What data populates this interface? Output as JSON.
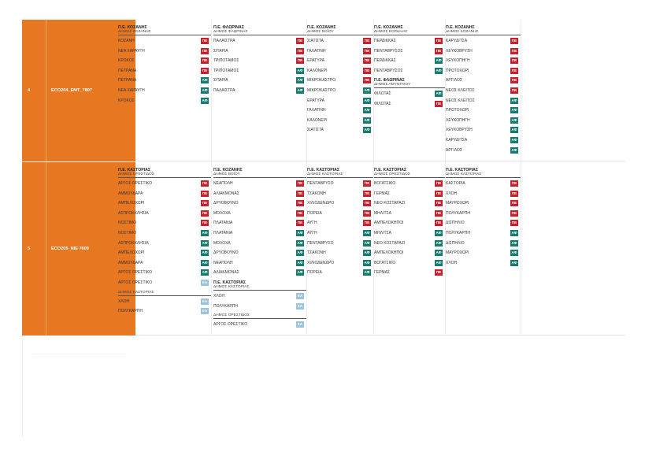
{
  "badge_colors": {
    "ΠΕ": "#c8202a",
    "ΑΦ": "#167a70",
    "ΕΑ": "#9cc3de"
  },
  "blocks": [
    {
      "number": "4",
      "code": "ECO204_EMT_7807",
      "columns": [
        {
          "groups": [
            {
              "title": "Π.Ε. ΚΟΖΑΝΗΣ",
              "subtitle": "ΔΗΜΟΣ ΚΟΖΑΝΗΣ",
              "rows": [
                {
                  "name": "ΚΟΖΑΝΗ",
                  "badge": "ΠΕ"
                },
                {
                  "name": "ΝΕΑ ΧΑΡΑΥΓΗ",
                  "badge": "ΠΕ"
                },
                {
                  "name": "ΚΡΟΚΟΣ",
                  "badge": "ΠΕ"
                },
                {
                  "name": "ΠΕΤΡΑΝΑ",
                  "badge": "ΠΕ"
                },
                {
                  "name": "ΠΕΤΡΑΝΑ",
                  "badge": "ΑΦ"
                },
                {
                  "name": "ΝΕΑ ΧΑΡΑΥΓΗ",
                  "badge": "ΑΦ"
                },
                {
                  "name": "ΚΡΟΚΟΣ",
                  "badge": "ΑΦ"
                }
              ]
            }
          ]
        },
        {
          "groups": [
            {
              "title": "Π.Ε. ΦΛΩΡΙΝΑΣ",
              "subtitle": "ΔΗΜΟΣ ΦΛΩΡΙΝΑΣ",
              "rows": [
                {
                  "name": "ΠΑΛΑΙΣΤΡΑ",
                  "badge": "ΠΕ"
                },
                {
                  "name": "ΣΙΤΑΡΙΑ",
                  "badge": "ΠΕ"
                },
                {
                  "name": "ΤΡΙΠΟΤΑΜΟΣ",
                  "badge": "ΠΕ"
                },
                {
                  "name": "ΤΡΙΠΟΤΑΜΟΣ",
                  "badge": "ΑΦ"
                },
                {
                  "name": "ΣΙΤΑΡΙΑ",
                  "badge": "ΑΦ"
                },
                {
                  "name": "ΠΑΛΑΙΣΤΡΑ",
                  "badge": "ΑΦ"
                }
              ]
            }
          ]
        },
        {
          "groups": [
            {
              "title": "Π.Ε. ΚΟΖΑΝΗΣ",
              "subtitle": "ΔΗΜΟΣ ΒΟΪΟΥ",
              "rows": [
                {
                  "name": "ΣΙΑΤΙΣΤΑ",
                  "badge": "ΠΕ"
                },
                {
                  "name": "ΓΑΛΑΤΙΝΗ",
                  "badge": "ΠΕ"
                },
                {
                  "name": "ΕΡΑΤΥΡΑ",
                  "badge": "ΠΕ"
                },
                {
                  "name": "ΚΑΛΟΝΕΡΙ",
                  "badge": "ΠΕ"
                },
                {
                  "name": "ΜΙΚΡΟΚΑΣΤΡΟ",
                  "badge": "ΠΕ"
                },
                {
                  "name": "ΜΙΚΡΟΚΑΣΤΡΟ",
                  "badge": "ΑΦ"
                },
                {
                  "name": "ΕΡΑΤΥΡΑ",
                  "badge": "ΑΦ"
                },
                {
                  "name": "ΓΑΛΑΤΙΝΗ",
                  "badge": "ΑΦ"
                },
                {
                  "name": "ΚΑΛΟΝΕΡΙ",
                  "badge": "ΑΦ"
                },
                {
                  "name": "ΣΙΑΤΙΣΤΑ",
                  "badge": "ΑΦ"
                }
              ]
            }
          ]
        },
        {
          "groups": [
            {
              "title": "Π.Ε. ΚΟΖΑΝΗΣ",
              "subtitle": "ΔΗΜΟΣ ΕΟΡΔΑΙΑΣ",
              "rows": [
                {
                  "name": "ΠΕΡΔΙΚΚΑΣ",
                  "badge": "ΠΕ"
                },
                {
                  "name": "ΠΕΝΤΑΒΡΥΣΟΣ",
                  "badge": "ΠΕ"
                },
                {
                  "name": "ΠΕΡΔΙΚΚΑΣ",
                  "badge": "ΑΦ"
                },
                {
                  "name": "ΠΕΝΤΑΒΡΥΣΟΣ",
                  "badge": "ΑΦ"
                }
              ]
            },
            {
              "title": "Π.Ε. ΦΛΩΡΙΝΑΣ",
              "subtitle": "ΔΗΜΟΣ ΑΜΥΝΤΑΙΟΥ",
              "rows": [
                {
                  "name": "ΦΙΛΩΤΑΣ",
                  "badge": "ΑΦ"
                },
                {
                  "name": "ΦΙΛΩΤΑΣ",
                  "badge": "ΠΕ"
                }
              ]
            }
          ]
        },
        {
          "groups": [
            {
              "title": "Π.Ε. ΚΟΖΑΝΗΣ",
              "subtitle": "ΔΗΜΟΣ ΚΟΖΑΝΗΣ",
              "rows": [
                {
                  "name": "ΚΑΡΥΔΙΤΣΑ",
                  "badge": "ΠΕ"
                },
                {
                  "name": "ΛΕΥΚΟΒΡΥΣΗ",
                  "badge": "ΠΕ"
                },
                {
                  "name": "ΛΕΥΚΟΠΗΓΗ",
                  "badge": "ΠΕ"
                },
                {
                  "name": "ΠΡΩΤΟΧΩΡΙ",
                  "badge": "ΠΕ"
                },
                {
                  "name": "ΑΡΓΙΛΟΣ",
                  "badge": "ΠΕ"
                },
                {
                  "name": "ΝΕΟΣ ΚΛΕΙΤΟΣ",
                  "badge": "ΠΕ"
                },
                {
                  "name": "ΝΕΟΣ ΚΛΕΙΤΟΣ",
                  "badge": "ΑΦ"
                },
                {
                  "name": "ΠΡΩΤΟΧΩΡΙ",
                  "badge": "ΑΦ"
                },
                {
                  "name": "ΛΕΥΚΟΠΗΓΗ",
                  "badge": "ΑΦ"
                },
                {
                  "name": "ΛΕΥΚΟΒΡΥΣΗ",
                  "badge": "ΑΦ"
                },
                {
                  "name": "ΚΑΡΥΔΙΤΣΑ",
                  "badge": "ΑΦ"
                },
                {
                  "name": "ΑΡΓΙΛΟΣ",
                  "badge": "ΑΦ"
                }
              ]
            }
          ]
        }
      ]
    },
    {
      "number": "5",
      "code": "ECO205_NIE 7609",
      "columns": [
        {
          "groups": [
            {
              "title": "Π.Ε. ΚΑΣΤΟΡΙΑΣ",
              "subtitle": "ΔΗΜΟΣ ΟΡΕΣΤΙΔΟΣ",
              "rows": [
                {
                  "name": "ΑΡΓΟΣ ΟΡΕΣΤΙΚΟ",
                  "badge": "ΠΕ"
                },
                {
                  "name": "ΑΜΜΟΥΔΑΡΑ",
                  "badge": "ΠΕ"
                },
                {
                  "name": "ΑΜΠΕΛΟΧΩΡΙ",
                  "badge": "ΠΕ"
                },
                {
                  "name": "ΑΣΠΡΟΚΚΛΗΣΙΑ",
                  "badge": "ΠΕ"
                },
                {
                  "name": "ΝΟΣΤΙΜΟ",
                  "badge": "ΠΕ"
                },
                {
                  "name": "ΝΟΣΤΙΜΟ",
                  "badge": "ΑΦ"
                },
                {
                  "name": "ΑΣΠΡΟΚΚΛΗΣΙΑ",
                  "badge": "ΑΦ"
                },
                {
                  "name": "ΑΜΠΕΛΟΧΩΡΙ",
                  "badge": "ΑΦ"
                },
                {
                  "name": "ΑΜΜΟΥΔΑΡΑ",
                  "badge": "ΑΦ"
                },
                {
                  "name": "ΑΡΓΟΣ ΟΡΕΣΤΙΚΟ",
                  "badge": "ΑΦ"
                },
                {
                  "name": "ΑΡΓΟΣ ΟΡΕΣΤΙΚΟ",
                  "badge": "ΕΑ"
                }
              ]
            },
            {
              "title": "",
              "subtitle": "ΔΗΜΟΣ ΚΑΣΤΟΡΙΑΣ",
              "rows": [
                {
                  "name": "ΧΛΟΗ",
                  "badge": "ΕΑ"
                },
                {
                  "name": "ΠΟΛΥΚΑΡΠΗ",
                  "badge": "ΕΑ"
                }
              ]
            }
          ]
        },
        {
          "groups": [
            {
              "title": "Π.Ε. ΚΟΖΑΝΗΣ",
              "subtitle": "ΔΗΜΟΣ ΒΟΪΟΥ",
              "rows": [
                {
                  "name": "ΝΕΑΠΟΛΗ",
                  "badge": "ΠΕ"
                },
                {
                  "name": "ΑΛΙΑΚΜΟΝΑΣ",
                  "badge": "ΠΕ"
                },
                {
                  "name": "ΔΡΥΟΒΟΥΝΟ",
                  "badge": "ΠΕ"
                },
                {
                  "name": "ΜΟΛΟΧΑ",
                  "badge": "ΠΕ"
                },
                {
                  "name": "ΠΛΑΤΑΝΙΑ",
                  "badge": "ΠΕ"
                },
                {
                  "name": "ΠΛΑΤΑΝΙΑ",
                  "badge": "ΑΦ"
                },
                {
                  "name": "ΜΟΛΟΧΑ",
                  "badge": "ΑΦ"
                },
                {
                  "name": "ΔΡΥΟΒΟΥΝΟ",
                  "badge": "ΑΦ"
                },
                {
                  "name": "ΝΕΑΠΟΛΗ",
                  "badge": "ΑΦ"
                },
                {
                  "name": "ΑΛΙΑΚΜΟΝΑΣ",
                  "badge": "ΑΦ"
                }
              ]
            },
            {
              "title": "Π.Ε. ΚΑΣΤΟΡΙΑΣ",
              "subtitle": "ΔΗΜΟΣ ΚΑΣΤΟΡΙΑΣ",
              "rows": [
                {
                  "name": "ΧΛΟΗ",
                  "badge": "ΕΑ"
                },
                {
                  "name": "ΠΟΛΥΚΑΡΠΗ",
                  "badge": "ΕΑ"
                }
              ]
            },
            {
              "title": "",
              "subtitle": "ΔΗΜΟΣ ΟΡΕΣΤΙΔΟΣ",
              "rows": [
                {
                  "name": "ΑΡΓΟΣ ΟΡΕΣΤΙΚΟ",
                  "badge": "ΕΑ"
                }
              ]
            }
          ]
        },
        {
          "groups": [
            {
              "title": "Π.Ε. ΚΑΣΤΟΡΙΑΣ",
              "subtitle": "ΔΗΜΟΣ ΚΑΣΤΟΡΙΑΣ",
              "rows": [
                {
                  "name": "ΠΕΝΤΑΒΡΥΣΟ",
                  "badge": "ΠΕ"
                },
                {
                  "name": "ΤΣΑΚΟΝΗ",
                  "badge": "ΠΕ"
                },
                {
                  "name": "ΧΙΛΙΟΔΕΝΔΡΟ",
                  "badge": "ΠΕ"
                },
                {
                  "name": "ΠΟΡΕΙΑ",
                  "badge": "ΠΕ"
                },
                {
                  "name": "ΑΥΓΗ",
                  "badge": "ΠΕ"
                },
                {
                  "name": "ΑΥΓΗ",
                  "badge": "ΑΦ"
                },
                {
                  "name": "ΠΕΝΤΑΒΡΥΣΟ",
                  "badge": "ΑΦ"
                },
                {
                  "name": "ΤΣΑΚΟΝΗ",
                  "badge": "ΑΦ"
                },
                {
                  "name": "ΧΙΛΙΟΔΕΝΔΡΟ",
                  "badge": "ΑΦ"
                },
                {
                  "name": "ΠΟΡΕΙΑ",
                  "badge": "ΑΦ"
                }
              ]
            }
          ]
        },
        {
          "groups": [
            {
              "title": "Π.Ε. ΚΑΣΤΟΡΙΑΣ",
              "subtitle": "ΔΗΜΟΣ ΟΡΕΣΤΙΔΟΣ",
              "rows": [
                {
                  "name": "ΒΟΓΑΤΣΙΚΟ",
                  "badge": "ΠΕ"
                },
                {
                  "name": "ΓΕΡΜΑΣ",
                  "badge": "ΠΕ"
                },
                {
                  "name": "ΝΕΟ ΚΟΣΤΑΡΑΖΙ",
                  "badge": "ΠΕ"
                },
                {
                  "name": "ΜΗΛΙΤΣΑ",
                  "badge": "ΠΕ"
                },
                {
                  "name": "ΑΜΠΕΛΟΚΗΠΟΙ",
                  "badge": "ΠΕ"
                },
                {
                  "name": "ΜΗΛΙΤΣΑ",
                  "badge": "ΑΦ"
                },
                {
                  "name": "ΝΕΟ ΚΟΣΤΑΡΑΖΙ",
                  "badge": "ΑΦ"
                },
                {
                  "name": "ΑΜΠΕΛΟΚΗΠΟΙ",
                  "badge": "ΑΦ"
                },
                {
                  "name": "ΒΟΓΑΤΣΙΚΟ",
                  "badge": "ΑΦ"
                },
                {
                  "name": "ΓΕΡΜΑΣ",
                  "badge": "ΠΕ"
                }
              ]
            }
          ]
        },
        {
          "groups": [
            {
              "title": "Π.Ε. ΚΑΣΤΟΡΙΑΣ",
              "subtitle": "ΔΗΜΟΣ ΚΑΣΤΟΡΙΑΣ",
              "rows": [
                {
                  "name": "ΚΑΣΤΟΡΙΑ",
                  "badge": "ΠΕ"
                },
                {
                  "name": "ΧΛΟΗ",
                  "badge": "ΠΕ"
                },
                {
                  "name": "ΜΑΥΡΟΧΩΡΙ",
                  "badge": "ΠΕ"
                },
                {
                  "name": "ΠΟΛΥΚΑΡΠΗ",
                  "badge": "ΠΕ"
                },
                {
                  "name": "ΔΙΣΠΗΛΙΟ",
                  "badge": "ΠΕ"
                },
                {
                  "name": "ΠΟΛΥΚΑΡΠΗ",
                  "badge": "ΑΦ"
                },
                {
                  "name": "ΔΙΣΠΗΛΙΟ",
                  "badge": "ΑΦ"
                },
                {
                  "name": "ΜΑΥΡΟΧΩΡΙ",
                  "badge": "ΑΦ"
                },
                {
                  "name": "ΧΛΟΗ",
                  "badge": "ΑΦ"
                }
              ]
            }
          ]
        }
      ]
    }
  ]
}
